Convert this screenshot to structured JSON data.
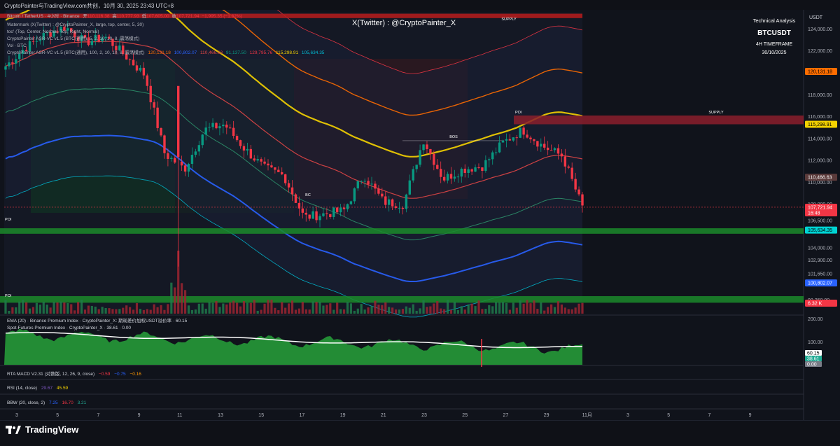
{
  "header": {
    "title": "CryptoPainter与TradingView.com共创，10月 30, 2025 23:43 UTC+8"
  },
  "watermark": "X(Twitter) : @CryptoPainter_X",
  "info_box": {
    "heading": "Technical Analysis",
    "symbol": "BTCUSDT",
    "timeframe": "4H TIMEFRAME",
    "date": "30/10/2025"
  },
  "legend": {
    "line1": {
      "name": "Bitcoin / TetherUS · 4小时 · Binance",
      "open_label": "开",
      "open": "110,116.38",
      "high_label": "高",
      "high": "110,777.93",
      "low_label": "低",
      "low": "107,605.00",
      "close_label": "收",
      "close": "107,721.94",
      "change": "−1,995.35 (−1.82%)"
    },
    "line2": "Watermark (X(Twitter) : @CryptoPainter_X, large, top, center, 5, 30)",
    "line3": "too' (Top, Center, Normal, Top, Right, Normal)",
    "line4": "CryptoPainter ASR-VC v1.5 (BTC(通用), 5, 2, 10, 10, 8, 震荡模式)",
    "line5": "Vol · BTC",
    "line6": {
      "name": "CryptoPainter ASR-VC v1.5 (BTC(通用), 100, 2, 10, 10, 8, 震荡模式)",
      "v1": "120,131.18",
      "v2": "100,802.07",
      "v3": "110,466.63",
      "v4": "91,137.50",
      "v5": "129,795.76",
      "v6": "115,298.91",
      "v7": "105,634.35"
    }
  },
  "price_axis": {
    "symbol_label": "USDT",
    "ticks": [
      "124,000.00",
      "122,000.00",
      "118,000.00",
      "116,000.00",
      "114,000.00",
      "112,000.00",
      "110,000.00",
      "108,000.00",
      "106,500.00",
      "104,000.00",
      "102,900.00",
      "101,650.00",
      "99,250.00"
    ],
    "tags": [
      {
        "value": "120,131.18",
        "color": "#ff6d00",
        "text_color": "#000000"
      },
      {
        "value": "115,298.91",
        "color": "#f5d300",
        "text_color": "#000000"
      },
      {
        "value": "110,466.63",
        "color": "#5a3a3a",
        "text_color": "#ffffff"
      },
      {
        "value": "107,721.94",
        "color": "#f23645",
        "text_color": "#ffffff",
        "sub": "16:48"
      },
      {
        "value": "105,634.35",
        "color": "#00d4d4",
        "text_color": "#000000"
      },
      {
        "value": "100,802.07",
        "color": "#2962ff",
        "text_color": "#ffffff"
      },
      {
        "value": "6.32 K",
        "color": "#f23645",
        "text_color": "#ffffff"
      }
    ]
  },
  "zones": {
    "supply_top_label": "SUPPLY",
    "supply_mid_label": "SUPPLY",
    "poi_top_label": "POI",
    "poi_mid_label": "POI",
    "poi_low_label": "POI",
    "bos_label": "BOS",
    "bc_label": "BC",
    "supply_color": "#b71c1c",
    "poi_color": "#1b8a2a"
  },
  "premium_panel": {
    "legend1": "EMA (20) · Binance Premium Index · CryptoPainter_X: 期现差价加权USDT溢价率 · 60.15",
    "legend2": "Spot-Futures Premium Index · CryptoPainter_X · 38.61 · 0.00",
    "ticks": [
      "200.00",
      "100.00"
    ],
    "tags": [
      {
        "value": "60.15",
        "color": "#ffffff",
        "text_color": "#000000"
      },
      {
        "value": "38.61",
        "color": "#22ab94",
        "text_color": "#ffffff"
      },
      {
        "value": "0.00",
        "color": "#787b86",
        "text_color": "#ffffff"
      }
    ]
  },
  "indicators": {
    "macd": {
      "label": "RTA MACD V2.31 (对数版, 12, 26, 9, close)",
      "v1": "−0.59",
      "v2": "−0.75",
      "v3": "−0.16"
    },
    "rsi": {
      "label": "RSI (14, close)",
      "v1": "29.67",
      "v2": "45.59"
    },
    "bbw": {
      "label": "BBW (20, close, 2)",
      "v1": "7.25",
      "v2": "16.70",
      "v3": "3.21"
    }
  },
  "time_axis": {
    "labels": [
      "3",
      "5",
      "7",
      "9",
      "11",
      "13",
      "15",
      "17",
      "19",
      "21",
      "23",
      "25",
      "27",
      "29",
      "11月",
      "3",
      "5",
      "7",
      "9"
    ]
  },
  "footer": {
    "brand": "TradingView"
  },
  "chart_data": {
    "type": "candlestick",
    "symbol": "BTCUSDT",
    "timeframe": "4H",
    "ylim": [
      98000,
      125500
    ],
    "price_ticks": [
      124000,
      122000,
      118000,
      116000,
      114000,
      112000,
      110000,
      108000,
      106500,
      104000,
      102900,
      101650,
      99250
    ],
    "x_labels": [
      "3",
      "5",
      "7",
      "9",
      "11",
      "13",
      "15",
      "17",
      "19",
      "21",
      "23",
      "25",
      "27",
      "29",
      "11月",
      "3",
      "5",
      "7",
      "9"
    ],
    "close_path": [
      [
        "Oct 3",
        120600
      ],
      [
        "Oct 4",
        122300
      ],
      [
        "Oct 5",
        123500
      ],
      [
        "Oct 6",
        124200
      ],
      [
        "Oct 7",
        122800
      ],
      [
        "Oct 8",
        123300
      ],
      [
        "Oct 9",
        121600
      ],
      [
        "Oct 10",
        119800
      ],
      [
        "Oct 11",
        112600
      ],
      [
        "Oct 11 pm",
        111200
      ],
      [
        "Oct 12",
        114800
      ],
      [
        "Oct 13",
        115300
      ],
      [
        "Oct 14",
        113100
      ],
      [
        "Oct 15",
        111300
      ],
      [
        "Oct 16",
        110600
      ],
      [
        "Oct 17",
        106800
      ],
      [
        "Oct 18",
        107100
      ],
      [
        "Oct 19",
        107400
      ],
      [
        "Oct 20",
        110700
      ],
      [
        "Oct 21",
        108200
      ],
      [
        "Oct 22",
        108000
      ],
      [
        "Oct 22 pm",
        113900
      ],
      [
        "Oct 23",
        110300
      ],
      [
        "Oct 24",
        111200
      ],
      [
        "Oct 25",
        111500
      ],
      [
        "Oct 26",
        113600
      ],
      [
        "Oct 27",
        114800
      ],
      [
        "Oct 28",
        113300
      ],
      [
        "Oct 29",
        112400
      ],
      [
        "Oct 30",
        107721.94
      ]
    ],
    "last_price": 107721.94,
    "bands": [
      {
        "level": 129795.76,
        "color": "#f23645"
      },
      {
        "level": 120131.18,
        "color": "#ff6d00"
      },
      {
        "level": 115298.91,
        "color": "#f5d300"
      },
      {
        "level": 110466.63,
        "color": "#e04646"
      },
      {
        "level": 105634.35,
        "color": "#00bcd4"
      },
      {
        "level": 100802.07,
        "color": "#2962ff"
      },
      {
        "level": 91137.5,
        "color": "#089981"
      }
    ],
    "zones": [
      {
        "name": "SUPPLY",
        "from": 125000,
        "to": 125400
      },
      {
        "name": "SUPPLY",
        "from": 115300,
        "to": 116100
      },
      {
        "name": "POI",
        "from": 105300,
        "to": 105800
      },
      {
        "name": "POI",
        "from": 99000,
        "to": 99600
      }
    ]
  }
}
